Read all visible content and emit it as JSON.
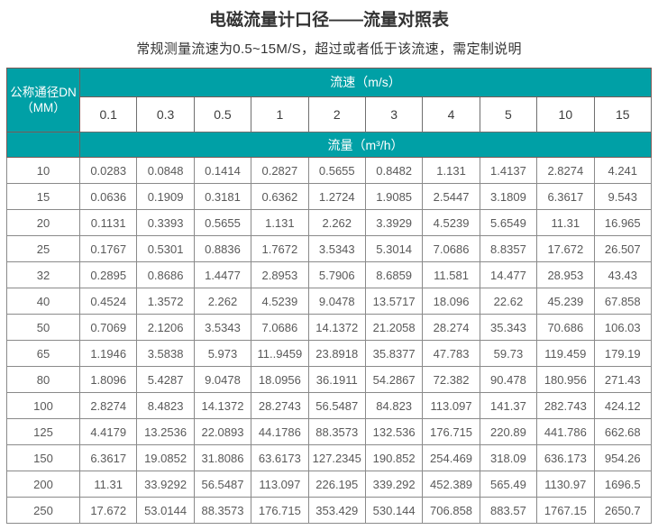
{
  "page": {
    "title": "电磁流量计口径——流量对照表",
    "subtitle": "常规测量流速为0.5~15M/S，超过或者低于该流速，需定制说明"
  },
  "table": {
    "corner_header_line1": "公称通径DN",
    "corner_header_line2": "（MM）",
    "velocity_header": "流速（m/s）",
    "flow_header": "流量（m³/h）",
    "velocities": [
      "0.1",
      "0.3",
      "0.5",
      "1",
      "2",
      "3",
      "4",
      "5",
      "10",
      "15"
    ],
    "rows": [
      {
        "dn": "10",
        "values": [
          "0.0283",
          "0.0848",
          "0.1414",
          "0.2827",
          "0.5655",
          "0.8482",
          "1.131",
          "1.4137",
          "2.8274",
          "4.241"
        ]
      },
      {
        "dn": "15",
        "values": [
          "0.0636",
          "0.1909",
          "0.3181",
          "0.6362",
          "1.2724",
          "1.9085",
          "2.5447",
          "3.1809",
          "6.3617",
          "9.543"
        ]
      },
      {
        "dn": "20",
        "values": [
          "0.1131",
          "0.3393",
          "0.5655",
          "1.131",
          "2.262",
          "3.3929",
          "4.5239",
          "5.6549",
          "11.31",
          "16.965"
        ]
      },
      {
        "dn": "25",
        "values": [
          "0.1767",
          "0.5301",
          "0.8836",
          "1.7672",
          "3.5343",
          "5.3014",
          "7.0686",
          "8.8357",
          "17.672",
          "26.507"
        ]
      },
      {
        "dn": "32",
        "values": [
          "0.2895",
          "0.8686",
          "1.4477",
          "2.8953",
          "5.7906",
          "8.6859",
          "11.581",
          "14.477",
          "28.953",
          "43.43"
        ]
      },
      {
        "dn": "40",
        "values": [
          "0.4524",
          "1.3572",
          "2.262",
          "4.5239",
          "9.0478",
          "13.5717",
          "18.096",
          "22.62",
          "45.239",
          "67.858"
        ]
      },
      {
        "dn": "50",
        "values": [
          "0.7069",
          "2.1206",
          "3.5343",
          "7.0686",
          "14.1372",
          "21.2058",
          "28.274",
          "35.343",
          "70.686",
          "106.03"
        ]
      },
      {
        "dn": "65",
        "values": [
          "1.1946",
          "3.5838",
          "5.973",
          "11..9459",
          "23.8918",
          "35.8377",
          "47.783",
          "59.73",
          "119.459",
          "179.19"
        ]
      },
      {
        "dn": "80",
        "values": [
          "1.8096",
          "5.4287",
          "9.0478",
          "18.0956",
          "36.1911",
          "54.2867",
          "72.382",
          "90.478",
          "180.956",
          "271.43"
        ]
      },
      {
        "dn": "100",
        "values": [
          "2.8274",
          "8.4823",
          "14.1372",
          "28.2743",
          "56.5487",
          "84.823",
          "113.097",
          "141.37",
          "282.743",
          "424.12"
        ]
      },
      {
        "dn": "125",
        "values": [
          "4.4179",
          "13.2536",
          "22.0893",
          "44.1786",
          "88.3573",
          "132.536",
          "176.715",
          "220.89",
          "441.786",
          "662.68"
        ]
      },
      {
        "dn": "150",
        "values": [
          "6.3617",
          "19.0852",
          "31.8086",
          "63.6173",
          "127.2345",
          "190.852",
          "254.469",
          "318.09",
          "636.173",
          "954.26"
        ]
      },
      {
        "dn": "200",
        "values": [
          "11.31",
          "33.9292",
          "56.5487",
          "113.097",
          "226.195",
          "339.292",
          "452.389",
          "565.49",
          "1130.97",
          "1696.5"
        ]
      },
      {
        "dn": "250",
        "values": [
          "17.672",
          "53.0144",
          "88.3573",
          "176.715",
          "353.429",
          "530.144",
          "706.858",
          "883.57",
          "1767.15",
          "2650.7"
        ]
      }
    ]
  },
  "colors": {
    "teal_header": "#00a0a6",
    "title_text": "#333333",
    "cell_text": "#595959",
    "data_border": "#8a8a8a",
    "header_border": "#7d5a57"
  }
}
